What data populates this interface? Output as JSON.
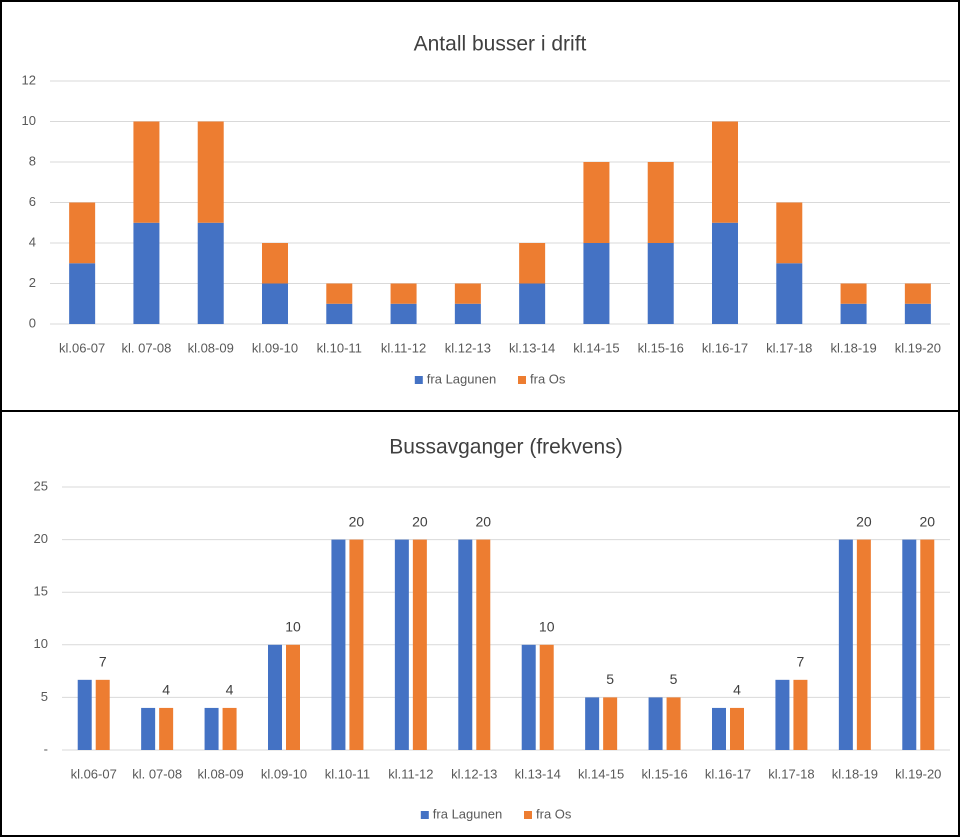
{
  "chart_data": [
    {
      "type": "stacked_bar",
      "title": "Antall busser i drift",
      "categories": [
        "kl.06-07",
        "kl. 07-08",
        "kl.08-09",
        "kl.09-10",
        "kl.10-11",
        "kl.11-12",
        "kl.12-13",
        "kl.13-14",
        "kl.14-15",
        "kl.15-16",
        "kl.16-17",
        "kl.17-18",
        "kl.18-19",
        "kl.19-20"
      ],
      "series": [
        {
          "name": "fra Lagunen",
          "color": "#4472c4",
          "values": [
            3,
            5,
            5,
            2,
            1,
            1,
            1,
            2,
            4,
            4,
            5,
            3,
            1,
            1
          ]
        },
        {
          "name": "fra Os",
          "color": "#ed7d31",
          "values": [
            3,
            5,
            5,
            2,
            1,
            1,
            1,
            2,
            4,
            4,
            5,
            3,
            1,
            1
          ]
        }
      ],
      "ylim": [
        0,
        12
      ],
      "yticks": [
        0,
        2,
        4,
        6,
        8,
        10,
        12
      ],
      "grid": true,
      "legend": "bottom"
    },
    {
      "type": "grouped_bar",
      "title": "Bussavganger (frekvens)",
      "categories": [
        "kl.06-07",
        "kl. 07-08",
        "kl.08-09",
        "kl.09-10",
        "kl.10-11",
        "kl.11-12",
        "kl.12-13",
        "kl.13-14",
        "kl.14-15",
        "kl.15-16",
        "kl.16-17",
        "kl.17-18",
        "kl.18-19",
        "kl.19-20"
      ],
      "series": [
        {
          "name": "fra Lagunen",
          "color": "#4472c4",
          "values": [
            6.67,
            4,
            4,
            10,
            20,
            20,
            20,
            10,
            5,
            5,
            4,
            6.67,
            20,
            20
          ]
        },
        {
          "name": "fra Os",
          "color": "#ed7d31",
          "values": [
            6.67,
            4,
            4,
            10,
            20,
            20,
            20,
            10,
            5,
            5,
            4,
            6.67,
            20,
            20
          ],
          "value_labels": [
            "7",
            "4",
            "4",
            "10",
            "20",
            "20",
            "20",
            "10",
            "5",
            "5",
            "4",
            "7",
            "20",
            "20"
          ]
        }
      ],
      "ylim": [
        0,
        25
      ],
      "yticks": [
        {
          "value": 0,
          "label": "-"
        },
        5,
        10,
        15,
        20,
        25
      ],
      "grid": true,
      "legend": "bottom"
    }
  ]
}
